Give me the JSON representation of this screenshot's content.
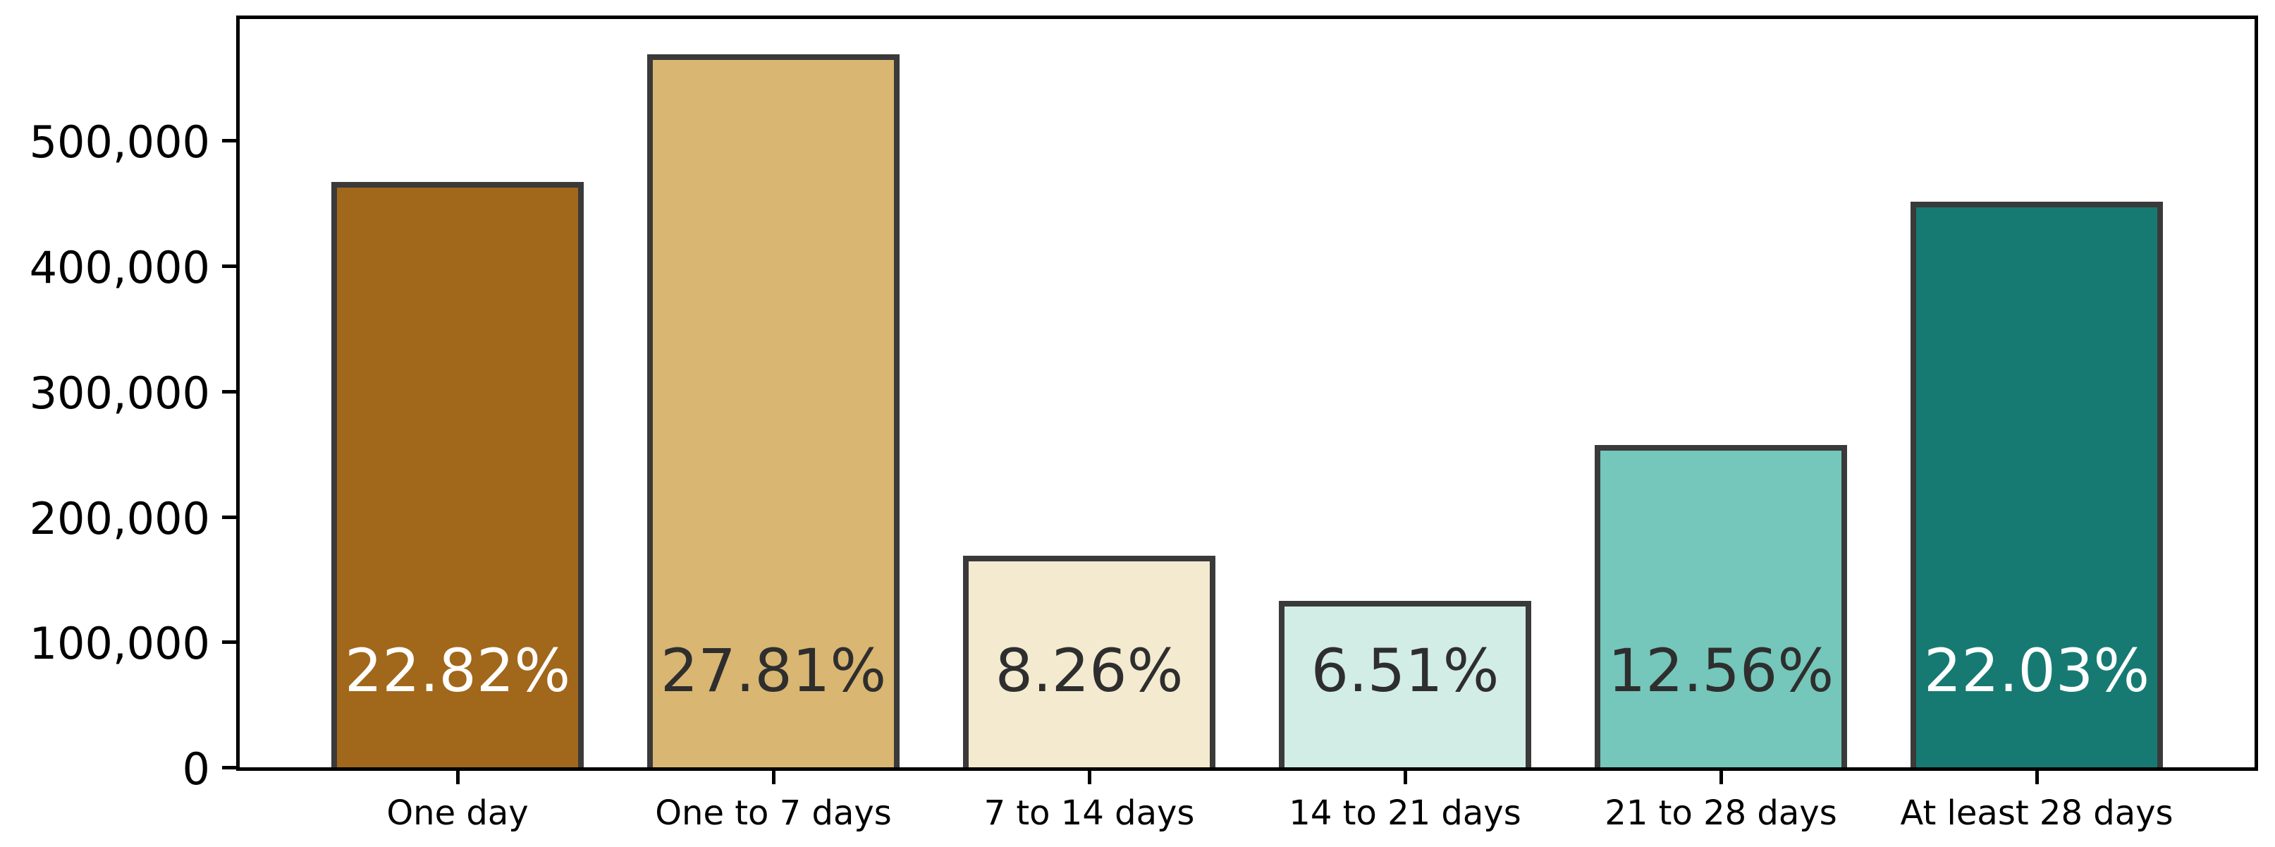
{
  "chart_data": {
    "type": "bar",
    "title": "",
    "xlabel": "",
    "ylabel": "",
    "categories": [
      "One day",
      "One to 7 days",
      "7 to 14 days",
      "14 to 21 days",
      "21 to 28 days",
      "At least 28 days"
    ],
    "values": [
      467000,
      569000,
      169000,
      133000,
      257000,
      451000
    ],
    "bar_labels": [
      "22.82%",
      "27.81%",
      "8.26%",
      "6.51%",
      "12.56%",
      "22.03%"
    ],
    "bar_colors": [
      "#a1671b",
      "#d9b671",
      "#f3ead0",
      "#d2ece6",
      "#74c7ba",
      "#177a72"
    ],
    "bar_label_colors": [
      "#ffffff",
      "#2e2e2e",
      "#2e2e2e",
      "#2e2e2e",
      "#2e2e2e",
      "#ffffff"
    ],
    "bar_edge_color": "#3a3a3a",
    "axis_color": "#000000",
    "ylim": [
      0,
      597000
    ],
    "yticks": [
      0,
      100000,
      200000,
      300000,
      400000,
      500000
    ],
    "ytick_labels": [
      "0",
      "100,000",
      "200,000",
      "300,000",
      "400,000",
      "500,000"
    ],
    "grid": false,
    "legend": null,
    "bar_relative_width": 0.8
  }
}
